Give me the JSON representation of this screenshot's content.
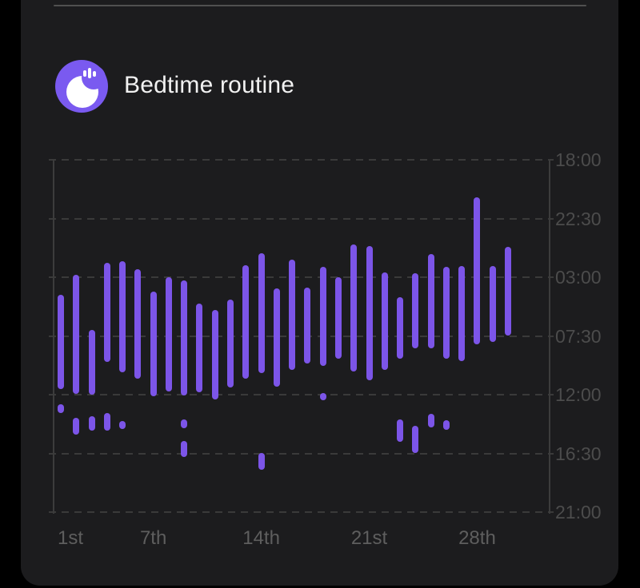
{
  "header": {
    "title": "Bedtime routine",
    "icon": "moon-sleep-icon"
  },
  "colors": {
    "page_bg": "#000000",
    "card_bg": "#1C1C1E",
    "bar": "#7C55E8",
    "icon_bg": "#7A5AF0",
    "icon_fg": "#FFFFFF",
    "grid": "#3A3A3A",
    "axis_border": "#3C3C3C",
    "y_label": "#4C4C4C",
    "x_label": "#5E5E5E",
    "title_text": "#F1F1F1",
    "top_divider": "#505050"
  },
  "chart_data": {
    "type": "bar",
    "subtype": "vertical range bars (sleep periods per day, time flows downward)",
    "title": "Bedtime routine",
    "legend": "none",
    "grid": "dashed horizontal gridlines at each y tick",
    "y_axis": {
      "side": "right",
      "ticks": [
        "18:00",
        "22:30",
        "03:00",
        "07:30",
        "12:00",
        "16:30",
        "21:00"
      ],
      "start": "18:00",
      "end": "21:00 (+1 day)",
      "span_hours": 27,
      "tick_interval_hours": 4.5
    },
    "x_axis": {
      "side": "bottom",
      "ticks": [
        "1st",
        "7th",
        "14th",
        "21st",
        "28th"
      ],
      "tick_days": [
        1,
        7,
        14,
        21,
        28
      ],
      "days_total": 30
    },
    "days": [
      {
        "day": 1,
        "segments": [
          [
            "04:21",
            "11:34"
          ],
          [
            "12:44",
            "13:24"
          ]
        ]
      },
      {
        "day": 2,
        "segments": [
          [
            "02:49",
            "11:56"
          ],
          [
            "13:46",
            "15:04"
          ]
        ]
      },
      {
        "day": 3,
        "segments": [
          [
            "07:03",
            "12:00"
          ],
          [
            "13:39",
            "14:46"
          ]
        ]
      },
      {
        "day": 4,
        "segments": [
          [
            "01:54",
            "09:29"
          ],
          [
            "13:24",
            "14:46"
          ]
        ]
      },
      {
        "day": 5,
        "segments": [
          [
            "01:47",
            "10:17"
          ],
          [
            "14:01",
            "14:38"
          ]
        ]
      },
      {
        "day": 6,
        "segments": [
          [
            "02:23",
            "10:46"
          ]
        ]
      },
      {
        "day": 7,
        "segments": [
          [
            "04:06",
            "12:07"
          ]
        ]
      },
      {
        "day": 8,
        "segments": [
          [
            "03:00",
            "11:45"
          ]
        ]
      },
      {
        "day": 9,
        "segments": [
          [
            "03:15",
            "12:04"
          ],
          [
            "13:54",
            "14:34"
          ],
          [
            "15:33",
            "16:46"
          ]
        ]
      },
      {
        "day": 10,
        "segments": [
          [
            "05:01",
            "11:49"
          ]
        ]
      },
      {
        "day": 11,
        "segments": [
          [
            "05:31",
            "12:22"
          ]
        ]
      },
      {
        "day": 12,
        "segments": [
          [
            "04:43",
            "11:27"
          ]
        ]
      },
      {
        "day": 13,
        "segments": [
          [
            "02:05",
            "10:46"
          ]
        ]
      },
      {
        "day": 14,
        "segments": [
          [
            "01:10",
            "10:21"
          ],
          [
            "16:28",
            "17:45"
          ]
        ]
      },
      {
        "day": 15,
        "segments": [
          [
            "03:52",
            "11:23"
          ]
        ]
      },
      {
        "day": 16,
        "segments": [
          [
            "01:39",
            "10:06"
          ]
        ]
      },
      {
        "day": 17,
        "segments": [
          [
            "03:47",
            "09:37"
          ]
        ]
      },
      {
        "day": 18,
        "segments": [
          [
            "02:12",
            "09:47"
          ],
          [
            "11:53",
            "12:26"
          ]
        ]
      },
      {
        "day": 19,
        "segments": [
          [
            "03:00",
            "09:15"
          ]
        ]
      },
      {
        "day": 20,
        "segments": [
          [
            "00:29",
            "10:13"
          ]
        ]
      },
      {
        "day": 21,
        "segments": [
          [
            "00:37",
            "10:53"
          ]
        ]
      },
      {
        "day": 22,
        "segments": [
          [
            "02:38",
            "10:06"
          ]
        ]
      },
      {
        "day": 23,
        "segments": [
          [
            "04:32",
            "09:15"
          ],
          [
            "13:54",
            "15:37"
          ]
        ]
      },
      {
        "day": 24,
        "segments": [
          [
            "02:41",
            "08:27"
          ],
          [
            "14:23",
            "16:28"
          ]
        ]
      },
      {
        "day": 25,
        "segments": [
          [
            "01:13",
            "08:27"
          ],
          [
            "13:28",
            "14:31"
          ]
        ]
      },
      {
        "day": 26,
        "segments": [
          [
            "02:12",
            "09:15"
          ],
          [
            "13:58",
            "14:41"
          ]
        ]
      },
      {
        "day": 27,
        "segments": [
          [
            "02:08",
            "09:26"
          ]
        ]
      },
      {
        "day": 28,
        "segments": [
          [
            "20:53",
            "08:08"
          ]
        ]
      },
      {
        "day": 29,
        "segments": [
          [
            "02:08",
            "07:58"
          ]
        ]
      },
      {
        "day": 30,
        "segments": [
          [
            "00:40",
            "07:28"
          ]
        ]
      }
    ]
  }
}
